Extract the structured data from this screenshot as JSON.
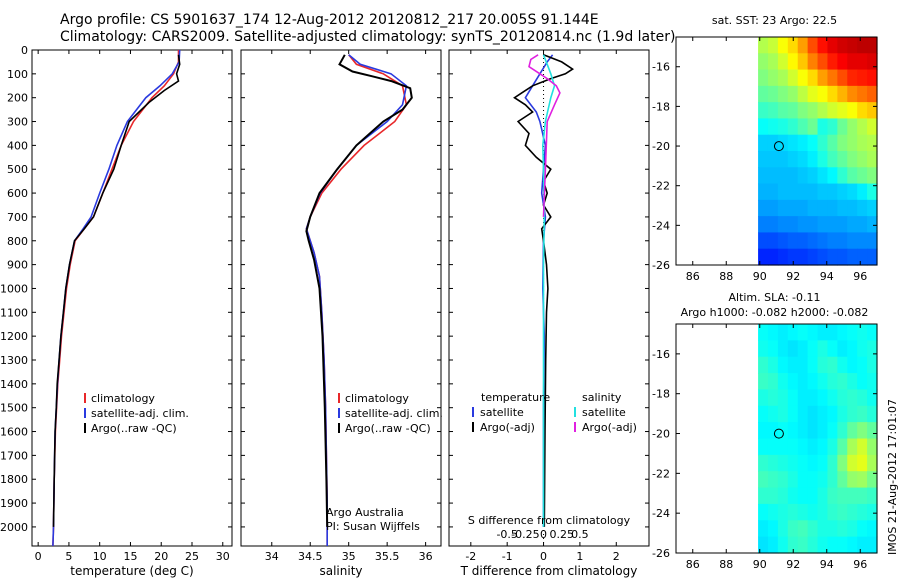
{
  "header": {
    "line1": "Argo profile: CS 5901637_174 12-Aug-2012 20120812_217 20.005S 91.144E",
    "line2": "Climatology: CARS2009. Satellite-adjusted climatology: synTS_20120814.nc (1.9d later)"
  },
  "credit": "IMOS 21-Aug-2012 17:01:07",
  "colors": {
    "red": "#e8282a",
    "blue": "#2a3adf",
    "black": "#000000",
    "cyan": "#22e0e0",
    "magenta": "#e020e0"
  },
  "chart_data": [
    {
      "id": "temperature",
      "type": "line",
      "xlabel": "temperature (deg C)",
      "xlim": [
        -1,
        31.5
      ],
      "xticks": [
        0,
        5,
        10,
        15,
        20,
        25,
        30
      ],
      "xtick_labels": [
        "0",
        "5",
        "10",
        "15",
        "20",
        "25",
        "30"
      ],
      "ylabel": "",
      "ylim": [
        2080,
        0
      ],
      "yticks": [
        0,
        100,
        200,
        300,
        400,
        500,
        600,
        700,
        800,
        900,
        1000,
        1100,
        1200,
        1300,
        1400,
        1500,
        1600,
        1700,
        1800,
        1900,
        2000
      ],
      "ytick_labels": [
        "0",
        "100",
        "200",
        "300",
        "400",
        "500",
        "600",
        "700",
        "800",
        "900",
        "1000",
        "1100",
        "1200",
        "1300",
        "1400",
        "1500",
        "1600",
        "1700",
        "1800",
        "1900",
        "2000"
      ],
      "legend": {
        "position": "center-left",
        "entries": [
          "climatology",
          "satellite-adj. clim.",
          "Argo(..raw -QC)"
        ]
      },
      "series": [
        {
          "name": "climatology",
          "color": "red",
          "x": [
            22.8,
            22.8,
            22.0,
            20.5,
            18.5,
            15.5,
            13.5,
            12.0,
            10.5,
            9.0,
            7.5,
            6.0,
            5.2,
            4.6,
            4.2,
            3.8,
            3.5,
            3.2,
            3.0,
            2.8,
            2.6,
            2.5,
            2.4
          ],
          "y": [
            0,
            50,
            100,
            150,
            200,
            300,
            400,
            500,
            600,
            700,
            750,
            800,
            900,
            1000,
            1100,
            1200,
            1300,
            1400,
            1500,
            1600,
            1800,
            2000,
            2080
          ]
        },
        {
          "name": "satellite-adj. clim.",
          "color": "blue",
          "x": [
            23.0,
            22.9,
            21.8,
            19.8,
            17.5,
            14.5,
            12.8,
            11.5,
            10.0,
            8.6,
            7.3,
            5.9,
            5.1,
            4.5,
            4.1,
            3.7,
            3.4,
            3.15,
            2.95,
            2.75,
            2.6,
            2.5,
            2.4
          ],
          "y": [
            0,
            50,
            100,
            150,
            200,
            300,
            400,
            500,
            600,
            700,
            750,
            800,
            900,
            1000,
            1100,
            1200,
            1300,
            1400,
            1500,
            1600,
            1800,
            2000,
            2080
          ]
        },
        {
          "name": "Argo(..raw -QC)",
          "color": "black",
          "x": [
            22.8,
            23.0,
            22.5,
            22.8,
            20.5,
            18.0,
            14.8,
            13.5,
            12.3,
            10.5,
            9.0,
            7.5,
            5.9,
            5.1,
            4.5,
            4.1,
            3.7,
            3.4,
            3.1,
            2.95,
            2.75,
            2.6,
            2.5
          ],
          "y": [
            20,
            60,
            100,
            130,
            170,
            220,
            300,
            400,
            500,
            600,
            700,
            750,
            800,
            900,
            1000,
            1100,
            1200,
            1300,
            1400,
            1500,
            1600,
            1800,
            2000
          ]
        }
      ]
    },
    {
      "id": "salinity",
      "type": "line",
      "xlabel": "salinity",
      "xlim": [
        33.6,
        36.2
      ],
      "xticks": [
        34,
        34.5,
        35,
        35.5,
        36
      ],
      "xtick_labels": [
        "34",
        "34.5",
        "35",
        "35.5",
        "36"
      ],
      "ylim": [
        2080,
        0
      ],
      "legend": {
        "position": "center-left",
        "entries": [
          "climatology",
          "satellite-adj. clim.",
          "Argo(..raw -QC)"
        ]
      },
      "annotations": [
        "Argo Australia",
        "PI: Susan Wijffels"
      ],
      "series": [
        {
          "name": "climatology",
          "color": "red",
          "x": [
            35.0,
            35.1,
            35.45,
            35.7,
            35.75,
            35.6,
            35.2,
            34.9,
            34.65,
            34.5,
            34.45,
            34.55,
            34.62,
            34.65,
            34.68,
            34.7,
            34.71,
            34.72,
            34.72,
            34.72
          ],
          "y": [
            20,
            60,
            100,
            150,
            230,
            300,
            400,
            500,
            600,
            700,
            750,
            850,
            950,
            1100,
            1300,
            1500,
            1700,
            1900,
            2000,
            2080
          ]
        },
        {
          "name": "satellite-adj. clim.",
          "color": "blue",
          "x": [
            35.0,
            35.15,
            35.55,
            35.75,
            35.7,
            35.5,
            35.1,
            34.85,
            34.63,
            34.5,
            34.45,
            34.55,
            34.62,
            34.65,
            34.68,
            34.7,
            34.71,
            34.72,
            34.72,
            34.72
          ],
          "y": [
            20,
            60,
            100,
            150,
            230,
            300,
            400,
            500,
            600,
            700,
            750,
            850,
            950,
            1100,
            1300,
            1500,
            1700,
            1900,
            2000,
            2080
          ]
        },
        {
          "name": "Argo(..raw -QC)",
          "color": "black",
          "x": [
            34.95,
            34.88,
            35.05,
            35.3,
            35.55,
            35.8,
            35.82,
            35.7,
            35.45,
            35.1,
            34.85,
            34.62,
            34.5,
            34.45,
            34.48,
            34.55,
            34.62,
            34.66,
            34.69,
            34.71,
            34.72
          ],
          "y": [
            20,
            60,
            90,
            110,
            130,
            160,
            200,
            250,
            300,
            400,
            500,
            600,
            700,
            760,
            800,
            880,
            1000,
            1200,
            1500,
            1800,
            2000
          ]
        }
      ]
    },
    {
      "id": "difference",
      "type": "line",
      "xlabel": "T difference from climatology",
      "top_label": "S difference from climatology",
      "xlim": [
        -2.6,
        2.9
      ],
      "xticks": [
        -2,
        -1,
        0,
        1,
        2
      ],
      "xtick_labels": [
        "-2",
        "-1",
        "0",
        "1",
        "2"
      ],
      "sticks": [
        -0.5,
        -0.25,
        0,
        0.25,
        0.5
      ],
      "stick_labels": [
        "-0.5",
        "-0.25",
        "0",
        "0.25",
        "0.5"
      ],
      "ylim": [
        2080,
        0
      ],
      "legend": {
        "position": "center",
        "temperature_title": "temperature",
        "salinity_title": "salinity",
        "entries": [
          "satellite",
          "Argo(-adj)",
          "satellite",
          "Argo(-adj)"
        ]
      },
      "series": [
        {
          "name": "T satellite",
          "color": "blue",
          "x": [
            0.25,
            0.1,
            -0.1,
            -0.3,
            -0.5,
            -0.2,
            -0.1,
            0.05,
            0.0,
            -0.05,
            0.05,
            0.0,
            -0.02,
            0.02,
            0.0,
            0.0,
            0.0
          ],
          "y": [
            20,
            50,
            100,
            150,
            200,
            260,
            300,
            400,
            500,
            600,
            700,
            800,
            1000,
            1200,
            1500,
            1800,
            2000
          ]
        },
        {
          "name": "T Argo(-adj)",
          "color": "black",
          "x": [
            0.0,
            0.5,
            0.8,
            0.6,
            0.2,
            -0.3,
            -0.6,
            -0.8,
            -0.5,
            -0.3,
            -0.7,
            -0.4,
            -0.5,
            -0.2,
            0.2,
            0.0,
            0.1,
            0.0,
            0.2,
            -0.05,
            0.0,
            0.08,
            0.12,
            0.08,
            0.06,
            0.04,
            0.02
          ],
          "y": [
            20,
            50,
            80,
            100,
            120,
            150,
            180,
            200,
            230,
            260,
            300,
            350,
            400,
            450,
            500,
            550,
            600,
            650,
            700,
            750,
            800,
            900,
            1000,
            1100,
            1300,
            1600,
            2000
          ]
        },
        {
          "name": "S satellite",
          "color": "cyan",
          "x": [
            0.0,
            0.1,
            0.2,
            0.3,
            0.2,
            0.05,
            -0.02,
            0.0,
            0.02,
            0.0,
            0.0,
            0.0
          ],
          "y": [
            20,
            60,
            100,
            150,
            200,
            300,
            400,
            500,
            700,
            900,
            1300,
            2000
          ]
        },
        {
          "name": "S Argo(-adj)",
          "color": "magenta",
          "x": [
            -0.15,
            -0.35,
            -0.4,
            -0.1,
            0.1,
            0.35,
            0.45,
            0.3,
            0.1,
            0.05,
            0.0
          ],
          "y": [
            20,
            40,
            70,
            100,
            120,
            150,
            180,
            230,
            300,
            500,
            700
          ]
        }
      ]
    },
    {
      "id": "sst-map",
      "type": "heatmap",
      "title": "sat. SST: 23 Argo: 22.5",
      "xlim": [
        85,
        97
      ],
      "ylim": [
        -26,
        -14.5
      ],
      "xticks": [
        86,
        88,
        90,
        92,
        94,
        96
      ],
      "xtick_labels": [
        "86",
        "88",
        "90",
        "92",
        "94",
        "96"
      ],
      "yticks": [
        -16,
        -18,
        -20,
        -22,
        -24,
        -26
      ],
      "ytick_labels": [
        "-16",
        "-18",
        "-20",
        "-22",
        "-24",
        "-26"
      ],
      "data_lon_range": [
        89.9,
        97
      ],
      "profile_location": [
        91.144,
        -20.005
      ],
      "grid_rows": [
        [
          0.55,
          0.57,
          0.62,
          0.66,
          0.72,
          0.8,
          0.86,
          0.9,
          0.92,
          0.93,
          0.94,
          0.94
        ],
        [
          0.52,
          0.54,
          0.58,
          0.63,
          0.68,
          0.75,
          0.8,
          0.85,
          0.88,
          0.9,
          0.9,
          0.91
        ],
        [
          0.5,
          0.52,
          0.54,
          0.58,
          0.62,
          0.66,
          0.72,
          0.76,
          0.8,
          0.84,
          0.85,
          0.86
        ],
        [
          0.47,
          0.48,
          0.5,
          0.52,
          0.56,
          0.6,
          0.62,
          0.66,
          0.7,
          0.74,
          0.76,
          0.78
        ],
        [
          0.43,
          0.44,
          0.46,
          0.47,
          0.5,
          0.52,
          0.55,
          0.58,
          0.6,
          0.62,
          0.66,
          0.68
        ],
        [
          0.38,
          0.39,
          0.4,
          0.42,
          0.45,
          0.48,
          0.4,
          0.42,
          0.48,
          0.52,
          0.55,
          0.58
        ],
        [
          0.33,
          0.33,
          0.34,
          0.35,
          0.36,
          0.38,
          0.42,
          0.46,
          0.5,
          0.52,
          0.54,
          0.55
        ],
        [
          0.32,
          0.32,
          0.32,
          0.33,
          0.34,
          0.36,
          0.4,
          0.44,
          0.47,
          0.5,
          0.52,
          0.54
        ],
        [
          0.31,
          0.31,
          0.31,
          0.31,
          0.32,
          0.33,
          0.35,
          0.37,
          0.42,
          0.46,
          0.48,
          0.5
        ],
        [
          0.3,
          0.3,
          0.31,
          0.31,
          0.31,
          0.31,
          0.32,
          0.32,
          0.33,
          0.34,
          0.36,
          0.4
        ],
        [
          0.28,
          0.28,
          0.29,
          0.29,
          0.29,
          0.3,
          0.3,
          0.3,
          0.31,
          0.31,
          0.32,
          0.33
        ],
        [
          0.25,
          0.25,
          0.26,
          0.26,
          0.27,
          0.27,
          0.28,
          0.28,
          0.28,
          0.29,
          0.29,
          0.3
        ],
        [
          0.2,
          0.2,
          0.21,
          0.22,
          0.22,
          0.23,
          0.24,
          0.25,
          0.25,
          0.26,
          0.26,
          0.26
        ],
        [
          0.16,
          0.16,
          0.17,
          0.18,
          0.18,
          0.19,
          0.2,
          0.21,
          0.21,
          0.22,
          0.22,
          0.22
        ]
      ]
    },
    {
      "id": "sla-map",
      "type": "heatmap",
      "title": "Altim. SLA: -0.11",
      "subtitle": "Argo h1000: -0.082 h2000: -0.082",
      "xlim": [
        85,
        97
      ],
      "ylim": [
        -26,
        -14.5
      ],
      "xticks": [
        86,
        88,
        90,
        92,
        94,
        96
      ],
      "xtick_labels": [
        "86",
        "88",
        "90",
        "92",
        "94",
        "96"
      ],
      "yticks": [
        -16,
        -18,
        -20,
        -22,
        -24,
        -26
      ],
      "ytick_labels": [
        "-16",
        "-18",
        "-20",
        "-22",
        "-24",
        "-26"
      ],
      "data_lon_range": [
        89.9,
        97
      ],
      "profile_location": [
        91.144,
        -20.005
      ],
      "grid_rows": [
        [
          0.38,
          0.37,
          0.36,
          0.37,
          0.38,
          0.37,
          0.36,
          0.36,
          0.37,
          0.38,
          0.39,
          0.38
        ],
        [
          0.39,
          0.38,
          0.36,
          0.35,
          0.36,
          0.38,
          0.4,
          0.38,
          0.36,
          0.37,
          0.39,
          0.4
        ],
        [
          0.42,
          0.4,
          0.37,
          0.36,
          0.36,
          0.38,
          0.41,
          0.42,
          0.39,
          0.37,
          0.38,
          0.4
        ],
        [
          0.43,
          0.42,
          0.39,
          0.37,
          0.36,
          0.37,
          0.39,
          0.41,
          0.42,
          0.4,
          0.38,
          0.39
        ],
        [
          0.4,
          0.41,
          0.4,
          0.38,
          0.36,
          0.36,
          0.37,
          0.39,
          0.41,
          0.42,
          0.41,
          0.39
        ],
        [
          0.38,
          0.39,
          0.4,
          0.38,
          0.36,
          0.35,
          0.36,
          0.37,
          0.4,
          0.42,
          0.43,
          0.41
        ],
        [
          0.37,
          0.37,
          0.38,
          0.37,
          0.36,
          0.35,
          0.36,
          0.38,
          0.42,
          0.47,
          0.5,
          0.47
        ],
        [
          0.38,
          0.38,
          0.38,
          0.38,
          0.37,
          0.36,
          0.37,
          0.4,
          0.46,
          0.54,
          0.58,
          0.52
        ],
        [
          0.42,
          0.41,
          0.4,
          0.39,
          0.38,
          0.37,
          0.38,
          0.42,
          0.5,
          0.58,
          0.6,
          0.54
        ],
        [
          0.44,
          0.43,
          0.42,
          0.4,
          0.38,
          0.38,
          0.39,
          0.42,
          0.47,
          0.52,
          0.53,
          0.49
        ],
        [
          0.42,
          0.42,
          0.41,
          0.39,
          0.38,
          0.38,
          0.4,
          0.43,
          0.44,
          0.44,
          0.44,
          0.43
        ],
        [
          0.38,
          0.39,
          0.4,
          0.41,
          0.4,
          0.39,
          0.4,
          0.42,
          0.43,
          0.42,
          0.41,
          0.4
        ],
        [
          0.36,
          0.37,
          0.4,
          0.43,
          0.44,
          0.42,
          0.4,
          0.4,
          0.41,
          0.4,
          0.38,
          0.37
        ],
        [
          0.35,
          0.36,
          0.39,
          0.42,
          0.43,
          0.41,
          0.39,
          0.38,
          0.38,
          0.37,
          0.36,
          0.36
        ]
      ]
    }
  ]
}
